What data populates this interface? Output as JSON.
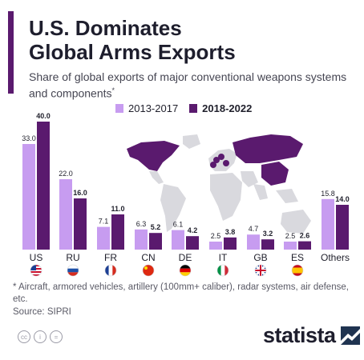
{
  "title": "U.S. Dominates\nGlobal Arms Exports",
  "subtitle": "Share of global exports of major conventional weapons systems and components",
  "subtitle_mark": "*",
  "legend": [
    {
      "label": "2013-2017",
      "color": "#c79cf0"
    },
    {
      "label": "2018-2022",
      "color": "#5a1a6e"
    }
  ],
  "chart_data": {
    "type": "bar",
    "categories": [
      "US",
      "RU",
      "FR",
      "CN",
      "DE",
      "IT",
      "GB",
      "ES",
      "Others"
    ],
    "flags": [
      "flag-us",
      "flag-ru",
      "flag-fr",
      "flag-cn",
      "flag-de",
      "flag-it",
      "flag-gb",
      "flag-es",
      null
    ],
    "series": [
      {
        "name": "2013-2017",
        "color": "#c79cf0",
        "values": [
          33.0,
          22.0,
          7.1,
          6.3,
          6.1,
          2.5,
          4.7,
          2.5,
          15.8
        ]
      },
      {
        "name": "2018-2022",
        "color": "#5a1a6e",
        "values": [
          40.0,
          16.0,
          11.0,
          5.2,
          4.2,
          3.8,
          3.2,
          2.6,
          14.0
        ]
      }
    ],
    "value_labels": [
      [
        "33.0",
        "22.0",
        "7.1",
        "6.3",
        "6.1",
        "2.5",
        "4.7",
        "2.5",
        "15.8"
      ],
      [
        "40.0",
        "16.0",
        "11.0",
        "5.2",
        "4.2",
        "3.8",
        "3.2",
        "2.6",
        "14.0"
      ]
    ],
    "ylim": [
      0,
      40
    ],
    "grid": false,
    "legend_position": "top"
  },
  "map": {
    "label": "world-map",
    "land_color": "#d9d9de",
    "highlight_color": "#5a1a6e"
  },
  "footnote": "* Aircraft, armored vehicles, artillery (100mm+ caliber), radar systems, air defense, etc.",
  "source": "Source: SIPRI",
  "license_icons": [
    "cc",
    "i",
    "="
  ],
  "brand": "statista"
}
